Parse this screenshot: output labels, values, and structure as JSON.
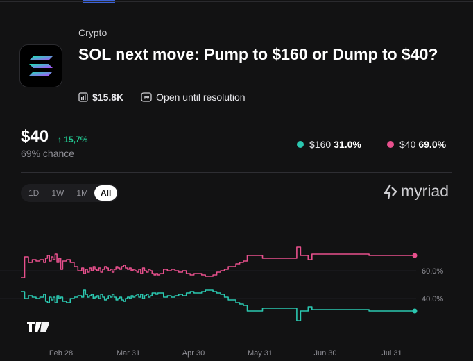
{
  "market": {
    "category": "Crypto",
    "title": "SOL next move: Pump to $160 or Dump to $40?",
    "volume": "$15.8K",
    "status": "Open until resolution"
  },
  "headline": {
    "price": "$40",
    "change": "↑ 15,7%",
    "chance": "69% chance"
  },
  "legend": [
    {
      "label": "$160",
      "pct": "31.0%",
      "color": "#2bc7b0"
    },
    {
      "label": "$40",
      "pct": "69.0%",
      "color": "#e8508d"
    }
  ],
  "ranges": {
    "d1": "1D",
    "w1": "1W",
    "m1": "1M",
    "all": "All",
    "selected": "All"
  },
  "brand": {
    "name": "myriad"
  },
  "chart_data": {
    "type": "line",
    "x_ticks": [
      "Feb 28",
      "Mar 31",
      "Apr 30",
      "May 31",
      "Jun 30",
      "Jul 31"
    ],
    "y_ticks": [
      "40.0%",
      "60.0%"
    ],
    "ylim": [
      20,
      80
    ],
    "series": [
      {
        "name": "$40",
        "color": "#e8508d",
        "x": [
          0,
          2,
          4,
          6,
          8,
          10,
          12,
          13,
          14,
          15,
          16,
          17,
          18,
          19,
          20,
          21,
          22,
          24,
          26,
          28,
          30,
          32,
          33,
          34,
          35,
          36,
          37,
          38,
          39,
          40,
          41,
          42,
          43,
          44,
          45,
          46,
          47,
          48,
          49,
          50,
          51,
          52,
          53,
          54,
          55,
          56,
          57,
          58,
          59,
          60,
          61,
          62,
          63,
          64,
          65,
          66,
          67,
          68,
          69,
          70,
          71,
          72,
          73,
          75,
          77,
          79,
          81,
          83,
          85,
          87,
          89,
          91,
          93,
          95,
          97,
          99,
          101,
          103,
          105,
          107,
          109,
          111,
          113,
          115,
          117,
          119,
          121,
          123,
          125,
          127,
          129,
          131,
          133,
          135,
          137,
          139,
          141,
          143,
          145,
          147,
          149,
          151,
          153,
          155,
          157,
          159,
          161,
          163,
          165,
          167,
          169,
          171,
          173,
          175,
          177,
          179,
          181,
          183,
          185,
          187,
          189,
          191,
          193,
          195,
          197,
          199,
          201,
          203,
          205,
          207
        ],
        "values": [
          55,
          70,
          66,
          68,
          67,
          68,
          66,
          69,
          71,
          67,
          70,
          68,
          72,
          66,
          69,
          61,
          67,
          68,
          66,
          63,
          60,
          62,
          58,
          61,
          59,
          62,
          60,
          63,
          61,
          60,
          62,
          59,
          61,
          63,
          62,
          60,
          61,
          59,
          61,
          63,
          62,
          61,
          63,
          64,
          62,
          61,
          62,
          60,
          61,
          60,
          59,
          61,
          58,
          62,
          60,
          59,
          61,
          60,
          58,
          57,
          58,
          57,
          58,
          61,
          60,
          61,
          60,
          59,
          60,
          58,
          57,
          58,
          58,
          57,
          56,
          56,
          57,
          59,
          60,
          61,
          63,
          63,
          65,
          66,
          67,
          71,
          71,
          71,
          71,
          69,
          69,
          69,
          69,
          69,
          69,
          69,
          69,
          69,
          77,
          71,
          71,
          68,
          72,
          72,
          72,
          72,
          72,
          72,
          72,
          72,
          72,
          72,
          72,
          72,
          72,
          72,
          72,
          71,
          71,
          71,
          71,
          71,
          71,
          71,
          71,
          71,
          71,
          71,
          71,
          71
        ]
      },
      {
        "name": "$160",
        "color": "#2bc7b0",
        "x": [
          0,
          2,
          4,
          6,
          8,
          10,
          12,
          13,
          14,
          15,
          16,
          17,
          18,
          19,
          20,
          21,
          22,
          24,
          26,
          28,
          30,
          32,
          33,
          34,
          35,
          36,
          37,
          38,
          39,
          40,
          41,
          42,
          43,
          44,
          45,
          46,
          47,
          48,
          49,
          50,
          51,
          52,
          53,
          54,
          55,
          56,
          57,
          58,
          59,
          60,
          61,
          62,
          63,
          64,
          65,
          66,
          67,
          68,
          69,
          70,
          71,
          72,
          73,
          75,
          77,
          79,
          81,
          83,
          85,
          87,
          89,
          91,
          93,
          95,
          97,
          99,
          101,
          103,
          105,
          107,
          109,
          111,
          113,
          115,
          117,
          119,
          121,
          123,
          125,
          127,
          129,
          131,
          133,
          135,
          137,
          139,
          141,
          143,
          145,
          147,
          149,
          151,
          153,
          155,
          157,
          159,
          161,
          163,
          165,
          167,
          169,
          171,
          173,
          175,
          177,
          179,
          181,
          183,
          185,
          187,
          189,
          191,
          193,
          195,
          197,
          199,
          201,
          203,
          205,
          207
        ],
        "values": [
          45,
          40,
          42,
          41,
          40,
          41,
          43,
          38,
          37,
          41,
          39,
          41,
          37,
          42,
          40,
          41,
          38,
          37,
          40,
          41,
          42,
          41,
          46,
          43,
          41,
          42,
          43,
          40,
          41,
          42,
          40,
          43,
          41,
          39,
          40,
          42,
          41,
          43,
          41,
          39,
          40,
          41,
          39,
          38,
          40,
          41,
          40,
          42,
          41,
          42,
          43,
          41,
          43,
          40,
          42,
          43,
          41,
          42,
          44,
          44,
          43,
          44,
          44,
          41,
          42,
          41,
          42,
          43,
          42,
          44,
          45,
          44,
          44,
          45,
          46,
          46,
          45,
          44,
          43,
          41,
          39,
          39,
          37,
          36,
          35,
          31,
          31,
          31,
          31,
          33,
          33,
          33,
          33,
          33,
          33,
          33,
          33,
          33,
          24,
          31,
          31,
          34,
          32,
          32,
          32,
          32,
          32,
          32,
          32,
          32,
          32,
          32,
          32,
          32,
          32,
          32,
          32,
          31,
          31,
          31,
          31,
          31,
          31,
          31,
          31,
          31,
          31,
          31,
          31,
          31
        ]
      }
    ]
  }
}
